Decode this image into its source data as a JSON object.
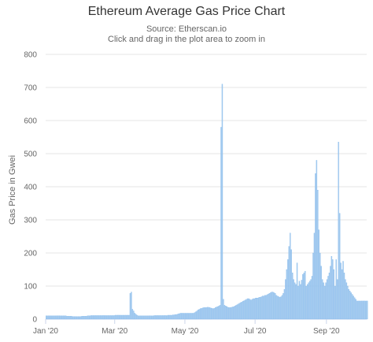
{
  "chart_data": {
    "type": "bar",
    "title": "Ethereum Average Gas Price Chart",
    "subtitle": "Source: Etherscan.io",
    "subtitle2": "Click and drag in the plot area to zoom in",
    "ylabel": "Gas Price in Gwei",
    "xlabel": "",
    "ylim": [
      0,
      800
    ],
    "yticks": [
      0,
      100,
      200,
      300,
      400,
      500,
      600,
      700,
      800
    ],
    "xlim": [
      "2020-01-01",
      "2020-10-06"
    ],
    "xticks": [
      {
        "date": "2020-01-01",
        "label": "Jan '20"
      },
      {
        "date": "2020-03-01",
        "label": "Mar '20"
      },
      {
        "date": "2020-05-01",
        "label": "May '20"
      },
      {
        "date": "2020-07-01",
        "label": "Jul '20"
      },
      {
        "date": "2020-09-01",
        "label": "Sep '20"
      }
    ],
    "grid": true,
    "bar_color": "#a9cdee",
    "bar_edge_color": "#7cb5ec",
    "start_date": "2020-01-01",
    "values": [
      10,
      10,
      10,
      10,
      10,
      10,
      10,
      10,
      10,
      10,
      10,
      10,
      10,
      10,
      10,
      10,
      10,
      10,
      9,
      9,
      9,
      9,
      9,
      8,
      8,
      8,
      8,
      8,
      8,
      8,
      8,
      9,
      9,
      9,
      9,
      9,
      10,
      10,
      10,
      11,
      11,
      11,
      11,
      11,
      11,
      11,
      11,
      11,
      11,
      11,
      11,
      11,
      11,
      11,
      11,
      11,
      11,
      11,
      11,
      11,
      12,
      12,
      12,
      12,
      12,
      12,
      12,
      12,
      12,
      12,
      12,
      12,
      12,
      78,
      82,
      30,
      25,
      18,
      15,
      12,
      10,
      10,
      10,
      10,
      10,
      10,
      10,
      10,
      10,
      10,
      10,
      10,
      10,
      10,
      11,
      11,
      11,
      11,
      11,
      11,
      11,
      11,
      11,
      11,
      11,
      11,
      12,
      12,
      12,
      12,
      13,
      13,
      14,
      14,
      15,
      16,
      17,
      18,
      18,
      18,
      18,
      18,
      18,
      18,
      18,
      18,
      18,
      18,
      18,
      20,
      22,
      25,
      28,
      30,
      32,
      33,
      34,
      35,
      35,
      35,
      36,
      36,
      35,
      34,
      33,
      32,
      33,
      35,
      37,
      38,
      40,
      42,
      580,
      710,
      60,
      42,
      40,
      38,
      36,
      35,
      35,
      36,
      37,
      38,
      40,
      42,
      44,
      46,
      48,
      50,
      52,
      54,
      56,
      58,
      60,
      62,
      62,
      60,
      58,
      60,
      62,
      62,
      64,
      64,
      64,
      66,
      66,
      68,
      70,
      70,
      72,
      72,
      74,
      76,
      78,
      80,
      82,
      82,
      80,
      78,
      72,
      70,
      68,
      66,
      68,
      72,
      78,
      90,
      120,
      150,
      180,
      220,
      260,
      210,
      140,
      120,
      110,
      105,
      170,
      100,
      115,
      105,
      118,
      135,
      140,
      145,
      100,
      105,
      110,
      115,
      120,
      130,
      200,
      260,
      440,
      480,
      390,
      270,
      200,
      160,
      120,
      110,
      100,
      110,
      120,
      130,
      140,
      160,
      190,
      180,
      150,
      100,
      180,
      120,
      535,
      320,
      170,
      150,
      175,
      140,
      120,
      110,
      100,
      90,
      85,
      80,
      75,
      70,
      65,
      60,
      55,
      55,
      55,
      55,
      55,
      55,
      55,
      55,
      55,
      55
    ]
  }
}
